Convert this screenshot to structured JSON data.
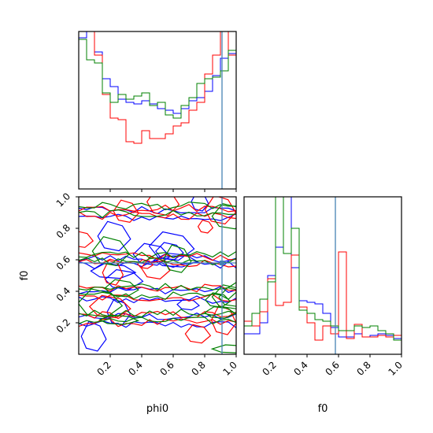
{
  "chart_data": [
    {
      "type": "corner",
      "params": [
        "phi0",
        "f0"
      ],
      "xlabel_phi0": "phi0",
      "xlabel_f0": "f0",
      "ylabel_f0": "f0",
      "range": [
        0,
        1
      ],
      "tick_labels": [
        "0.2",
        "0.4",
        "0.6",
        "0.8",
        "1.0"
      ],
      "tick_values": [
        0.2,
        0.4,
        0.6,
        0.8,
        1.0
      ],
      "truth": {
        "phi0": 0.91,
        "f0": 0.58
      },
      "truth_color": "#4682b4",
      "series_colors": [
        "#0000ff",
        "#ff0000",
        "#008000"
      ]
    },
    {
      "type": "histogram",
      "panel": "phi0",
      "bin_edges": [
        0,
        0.05,
        0.1,
        0.15,
        0.2,
        0.25,
        0.3,
        0.35,
        0.4,
        0.45,
        0.5,
        0.55,
        0.6,
        0.65,
        0.7,
        0.75,
        0.8,
        0.85,
        0.9,
        0.95,
        1.0
      ],
      "ylim": [
        0,
        1.0
      ],
      "series": [
        {
          "color": "#0000ff",
          "values": [
            0.96,
            1.0,
            0.87,
            0.7,
            0.65,
            0.57,
            0.55,
            0.54,
            0.56,
            0.54,
            0.51,
            0.5,
            0.48,
            0.51,
            0.56,
            0.58,
            0.62,
            0.72,
            0.83,
            0.86
          ]
        },
        {
          "color": "#ff0000",
          "values": [
            1.0,
            1.0,
            0.85,
            0.6,
            0.45,
            0.44,
            0.3,
            0.29,
            0.37,
            0.32,
            0.32,
            0.35,
            0.4,
            0.42,
            0.5,
            0.55,
            0.73,
            0.85,
            1.0,
            0.85
          ]
        },
        {
          "color": "#008000",
          "values": [
            0.95,
            0.82,
            0.8,
            0.61,
            0.55,
            0.6,
            0.57,
            0.59,
            0.61,
            0.53,
            0.55,
            0.47,
            0.45,
            0.53,
            0.58,
            0.67,
            0.7,
            0.71,
            0.75,
            0.88
          ]
        }
      ]
    },
    {
      "type": "histogram",
      "panel": "f0",
      "bin_edges": [
        0,
        0.05,
        0.1,
        0.15,
        0.2,
        0.25,
        0.3,
        0.35,
        0.4,
        0.45,
        0.5,
        0.55,
        0.6,
        0.65,
        0.7,
        0.75,
        0.8,
        0.85,
        0.9,
        0.95,
        1.0
      ],
      "ylim": [
        0,
        1.0
      ],
      "series": [
        {
          "color": "#0000ff",
          "values": [
            0.13,
            0.13,
            0.2,
            0.5,
            0.68,
            1.0,
            0.55,
            0.34,
            0.33,
            0.32,
            0.26,
            0.17,
            0.11,
            0.11,
            0.13,
            0.11,
            0.12,
            0.13,
            0.12,
            0.1
          ]
        },
        {
          "color": "#ff0000",
          "values": [
            0.21,
            0.18,
            0.27,
            0.48,
            0.31,
            0.33,
            0.63,
            0.3,
            0.2,
            0.09,
            0.18,
            0.13,
            0.65,
            0.1,
            0.19,
            0.11,
            0.11,
            0.12,
            0.11,
            0.12
          ]
        },
        {
          "color": "#008000",
          "values": [
            0.18,
            0.26,
            0.35,
            0.46,
            1.0,
            0.64,
            0.8,
            0.28,
            0.26,
            0.22,
            0.21,
            0.18,
            0.15,
            0.15,
            0.18,
            0.17,
            0.18,
            0.15,
            0.13,
            0.09
          ]
        }
      ]
    },
    {
      "type": "contour",
      "panel": "phi0_vs_f0",
      "xlim": [
        0,
        1
      ],
      "ylim": [
        0,
        1
      ]
    }
  ]
}
